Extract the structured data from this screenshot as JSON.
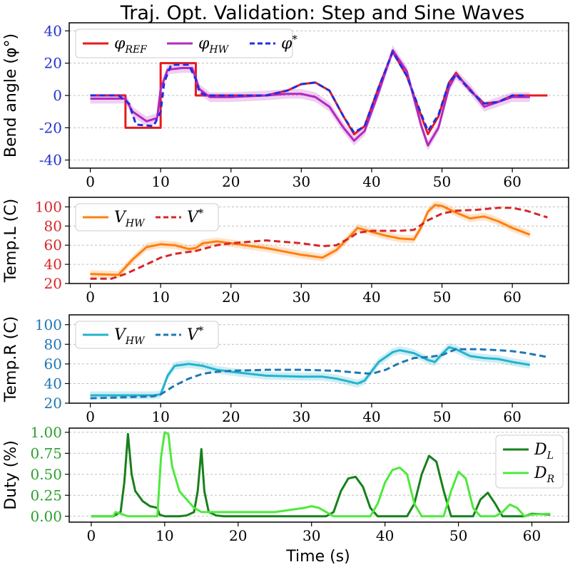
{
  "title": "Traj. Opt. Validation: Step and Sine Waves",
  "xlabel": "Time (s)",
  "chart_data": [
    {
      "type": "line",
      "id": "bend",
      "ylabel": "Bend angle (φ°)",
      "ylim": [
        -45,
        45
      ],
      "yticks": [
        -40,
        -20,
        0,
        20,
        40
      ],
      "ytick_color": "#2233cc",
      "xticks": [
        0,
        10,
        20,
        30,
        40,
        50,
        60
      ],
      "xlim": [
        -3,
        68
      ],
      "grid": true,
      "legend": "top-left",
      "series": [
        {
          "name": "φREF",
          "color": "#e8191b",
          "dash": "",
          "width": 3,
          "x": [
            0,
            5,
            5,
            10,
            10,
            15,
            15,
            20,
            25,
            28,
            30,
            32,
            34,
            36,
            37.5,
            39,
            41,
            43,
            45,
            47,
            48,
            49.5,
            51,
            52,
            54,
            56,
            58,
            60,
            62,
            65
          ],
          "y": [
            0,
            0,
            -20,
            -20,
            20,
            20,
            0,
            0,
            0,
            3,
            7,
            8,
            3,
            -13,
            -24,
            -19,
            5,
            27,
            12,
            -12,
            -24,
            -13,
            8,
            14,
            3,
            -5,
            -4,
            0,
            0,
            0
          ]
        },
        {
          "name": "φHW",
          "color": "#b428c0",
          "dash": "",
          "width": 3,
          "band": 3,
          "x": [
            0,
            3,
            5,
            6,
            8,
            9.5,
            10,
            11,
            13,
            14.5,
            15.5,
            17,
            20,
            25,
            28,
            30,
            32,
            34,
            36,
            37.5,
            39,
            41,
            43,
            45,
            47,
            48,
            49.5,
            51,
            52,
            54,
            56,
            58,
            60,
            62.5
          ],
          "y": [
            -2,
            -2,
            -2,
            -10,
            -16,
            -14,
            4,
            16,
            17,
            17,
            4,
            -1,
            -1,
            0,
            1,
            1,
            -1,
            -7,
            -20,
            -28,
            -22,
            2,
            28,
            15,
            -18,
            -31,
            -20,
            5,
            13,
            4,
            -7,
            -4,
            -1,
            -1
          ]
        },
        {
          "name": "φ*",
          "color": "#1f2ee0",
          "dash": "8 5",
          "width": 3,
          "x": [
            0,
            4,
            5.5,
            6.5,
            9,
            10,
            10.5,
            11.5,
            14,
            15,
            15.5,
            16.5,
            20,
            25,
            28,
            30,
            32,
            34,
            36,
            37.5,
            39,
            41,
            43,
            45,
            47,
            48,
            49.5,
            51,
            52,
            54,
            56,
            58,
            60,
            62
          ],
          "y": [
            0,
            0,
            -5,
            -18,
            -19,
            -10,
            8,
            19,
            19,
            10,
            2,
            0,
            0,
            0,
            3,
            7,
            8,
            3,
            -13,
            -23,
            -19,
            5,
            27,
            12,
            -11,
            -22,
            -12,
            8,
            13,
            3,
            -5,
            -4,
            0,
            0
          ]
        }
      ]
    },
    {
      "type": "line",
      "id": "tl",
      "ylabel": "Temp.L (C)",
      "ylim": [
        20,
        110
      ],
      "yticks": [
        20,
        40,
        60,
        80,
        100
      ],
      "ytick_color": "#d62728",
      "xticks": [
        0,
        10,
        20,
        30,
        40,
        50,
        60
      ],
      "xlim": [
        -3,
        68
      ],
      "grid": true,
      "legend": "top-left",
      "series": [
        {
          "name": "VHW",
          "color": "#ff7f0e",
          "dash": "",
          "width": 3,
          "band": 4,
          "x": [
            0,
            4,
            6,
            8,
            10,
            12,
            14,
            15,
            16,
            18,
            20,
            25,
            30,
            33,
            35,
            37,
            38,
            40,
            42,
            44,
            46,
            47,
            48,
            49,
            50,
            52,
            54,
            56,
            58,
            60,
            62.5
          ],
          "y": [
            30,
            29,
            45,
            58,
            61,
            60,
            56,
            57,
            62,
            64,
            62,
            57,
            50,
            47,
            55,
            70,
            78,
            74,
            70,
            67,
            66,
            78,
            95,
            102,
            101,
            94,
            88,
            90,
            85,
            78,
            71
          ]
        },
        {
          "name": "V*",
          "color": "#d62728",
          "dash": "9 5",
          "width": 3,
          "x": [
            0,
            3,
            5,
            8,
            10,
            12,
            15,
            18,
            20,
            25,
            30,
            33,
            35,
            37,
            38,
            40,
            42,
            44,
            46,
            48,
            50,
            52,
            55,
            58,
            60,
            62,
            65
          ],
          "y": [
            25,
            25,
            30,
            40,
            47,
            51,
            54,
            60,
            62,
            65,
            62,
            59,
            60,
            68,
            73,
            75,
            75,
            75,
            76,
            86,
            93,
            96,
            97,
            99,
            99,
            96,
            89
          ]
        }
      ]
    },
    {
      "type": "line",
      "id": "tr",
      "ylabel": "Temp.R (C)",
      "ylim": [
        20,
        110
      ],
      "yticks": [
        20,
        40,
        60,
        80,
        100
      ],
      "ytick_color": "#1f77b4",
      "xticks": [
        0,
        10,
        20,
        30,
        40,
        50,
        60
      ],
      "xlim": [
        -3,
        68
      ],
      "grid": true,
      "legend": "top-left",
      "series": [
        {
          "name": "VHW",
          "color": "#23b3ce",
          "dash": "",
          "width": 3,
          "band": 4,
          "x": [
            0,
            5,
            9,
            10,
            11,
            12,
            14,
            16,
            18,
            20,
            25,
            30,
            33,
            35,
            38,
            39,
            41,
            43,
            44,
            46,
            48,
            49,
            50,
            51,
            52,
            54,
            56,
            58,
            60,
            62.5
          ],
          "y": [
            28,
            28,
            28,
            29,
            48,
            58,
            60,
            58,
            54,
            52,
            48,
            47,
            47,
            45,
            40,
            43,
            62,
            72,
            74,
            71,
            64,
            62,
            70,
            77,
            75,
            68,
            66,
            65,
            62,
            59
          ]
        },
        {
          "name": "V*",
          "color": "#1f77b4",
          "dash": "9 5",
          "width": 3,
          "x": [
            0,
            5,
            9,
            10,
            12,
            14,
            16,
            18,
            20,
            25,
            30,
            35,
            38,
            40,
            42,
            44,
            46,
            48,
            50,
            52,
            55,
            58,
            60,
            62,
            65
          ],
          "y": [
            25,
            26,
            27,
            29,
            38,
            45,
            50,
            52,
            53,
            54,
            54,
            53,
            51,
            50,
            54,
            61,
            66,
            67,
            69,
            75,
            75,
            74,
            73,
            71,
            67
          ]
        }
      ]
    },
    {
      "type": "line",
      "id": "duty",
      "ylabel": "Duty (%)",
      "ylim": [
        -0.07,
        1.05
      ],
      "yticks": [
        0.0,
        0.25,
        0.5,
        0.75,
        1.0
      ],
      "ytick_labels": [
        "0.00",
        "0.25",
        "0.50",
        "0.75",
        "1.00"
      ],
      "ytick_color": "#2ca02c",
      "xticks": [
        0,
        10,
        20,
        30,
        40,
        50,
        60
      ],
      "xlim": [
        -3,
        65
      ],
      "grid": true,
      "legend": "top-right",
      "series": [
        {
          "name": "DL",
          "color": "#17801b",
          "dash": "",
          "width": 3,
          "x": [
            0,
            3,
            4,
            4.5,
            5,
            5.5,
            6,
            7,
            8,
            9,
            9.3,
            10,
            11,
            12,
            13,
            14,
            14.5,
            15,
            15.4,
            16,
            17,
            18,
            20,
            25,
            30,
            32,
            33,
            34,
            35,
            36,
            37,
            38,
            39,
            40,
            41,
            42,
            43,
            44,
            45,
            46,
            47,
            48,
            49,
            50,
            51,
            52,
            53,
            54,
            55,
            56,
            57,
            58,
            59,
            60,
            62.5
          ],
          "y": [
            0,
            0,
            0.05,
            0.4,
            0.98,
            0.5,
            0.3,
            0.18,
            0.12,
            0.1,
            0.02,
            0,
            0,
            0,
            0.01,
            0.05,
            0.3,
            0.8,
            0.3,
            0.05,
            0.01,
            0,
            0,
            0,
            0,
            0,
            0.05,
            0.3,
            0.45,
            0.47,
            0.35,
            0.1,
            0,
            0,
            0,
            0,
            0,
            0.15,
            0.5,
            0.72,
            0.65,
            0.3,
            0,
            0,
            0,
            0,
            0.2,
            0.28,
            0.15,
            0,
            0,
            0,
            0,
            0.03,
            0.02
          ]
        },
        {
          "name": "DR",
          "color": "#4ee93c",
          "dash": "",
          "width": 3,
          "x": [
            0,
            3,
            3.3,
            4,
            5,
            6,
            7,
            8,
            9,
            9.5,
            10,
            10.5,
            11,
            12,
            13,
            14,
            15,
            16,
            20,
            25,
            29,
            30,
            31,
            32,
            33,
            34,
            37,
            38,
            39,
            40,
            41,
            42,
            43,
            44,
            45,
            46,
            47,
            48,
            49,
            50,
            51,
            52,
            53,
            54,
            55,
            56,
            57,
            58,
            59,
            60,
            62.5
          ],
          "y": [
            0,
            0,
            0.05,
            0.03,
            0,
            0,
            0,
            0,
            0,
            0.7,
            1.0,
            0.98,
            0.6,
            0.3,
            0.2,
            0.1,
            0.05,
            0.05,
            0.05,
            0.05,
            0.1,
            0.12,
            0.1,
            0.05,
            0,
            0,
            0,
            0,
            0.15,
            0.4,
            0.55,
            0.58,
            0.5,
            0.15,
            0,
            0,
            0,
            0,
            0.3,
            0.53,
            0.45,
            0.1,
            0,
            0,
            0,
            0.05,
            0.14,
            0.1,
            0,
            0.02,
            0.03
          ]
        }
      ]
    }
  ]
}
